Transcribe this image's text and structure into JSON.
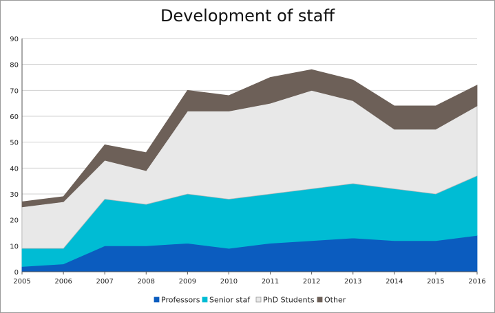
{
  "chart_data": {
    "type": "area",
    "stacked": true,
    "title": "Development of staff",
    "xlabel": "",
    "ylabel": "",
    "ylim": [
      0,
      90
    ],
    "yticks": [
      0,
      10,
      20,
      30,
      40,
      50,
      60,
      70,
      80,
      90
    ],
    "grid": true,
    "legend_position": "bottom",
    "categories": [
      "2005",
      "2006",
      "2007",
      "2008",
      "2009",
      "2010",
      "2011",
      "2012",
      "2013",
      "2014",
      "2015",
      "2016"
    ],
    "series": [
      {
        "name": "Professors",
        "color": "#0b5cbf",
        "values": [
          2,
          3,
          10,
          10,
          11,
          9,
          11,
          12,
          13,
          12,
          12,
          14
        ]
      },
      {
        "name": "Senior staf",
        "color": "#00bcd4",
        "values": [
          7,
          6,
          18,
          16,
          19,
          19,
          19,
          20,
          21,
          20,
          18,
          23
        ]
      },
      {
        "name": "PhD Students",
        "color": "#e8e8e8",
        "values": [
          16,
          18,
          15,
          13,
          32,
          34,
          35,
          38,
          32,
          23,
          25,
          27
        ]
      },
      {
        "name": "Other",
        "color": "#6d6058",
        "values": [
          2,
          2,
          6,
          7,
          8,
          6,
          10,
          8,
          8,
          9,
          9,
          8
        ]
      }
    ]
  }
}
